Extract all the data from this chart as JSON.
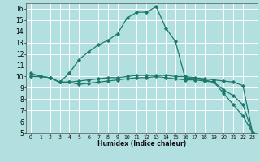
{
  "xlabel": "Humidex (Indice chaleur)",
  "bg_color": "#b2e0e0",
  "grid_color": "#ffffff",
  "line_color": "#1a7a6a",
  "xlim": [
    -0.5,
    23.5
  ],
  "ylim": [
    5,
    16.5
  ],
  "xticks": [
    0,
    1,
    2,
    3,
    4,
    5,
    6,
    7,
    8,
    9,
    10,
    11,
    12,
    13,
    14,
    15,
    16,
    17,
    18,
    19,
    20,
    21,
    22,
    23
  ],
  "yticks": [
    5,
    6,
    7,
    8,
    9,
    10,
    11,
    12,
    13,
    14,
    15,
    16
  ],
  "xticklabels": [
    "0",
    "1",
    "2",
    "3",
    "4",
    "5",
    "6",
    "7",
    "8",
    "9",
    "10",
    "11",
    "12",
    "13",
    "14",
    "15",
    "16",
    "17",
    "18",
    "19",
    "20",
    "21",
    "22",
    "23"
  ],
  "line1_x": [
    0,
    1,
    2,
    3,
    4,
    5,
    6,
    7,
    8,
    9,
    10,
    11,
    12,
    13,
    14,
    15,
    16,
    17,
    18,
    19,
    20,
    21,
    22,
    23
  ],
  "line1_y": [
    10,
    10,
    9.9,
    9.5,
    9.5,
    9.6,
    9.7,
    9.8,
    9.9,
    9.9,
    10.0,
    10.1,
    10.1,
    10.1,
    10.1,
    10.0,
    10.0,
    9.9,
    9.8,
    9.7,
    9.6,
    9.5,
    9.2,
    5.0
  ],
  "line2_x": [
    0,
    1,
    2,
    3,
    4,
    5,
    6,
    7,
    8,
    9,
    10,
    11,
    12,
    13,
    14,
    15,
    16,
    17,
    18,
    19,
    20,
    21,
    22,
    23
  ],
  "line2_y": [
    10,
    10,
    9.9,
    9.5,
    9.5,
    9.3,
    9.4,
    9.5,
    9.6,
    9.7,
    9.8,
    9.9,
    9.9,
    10.0,
    9.9,
    9.8,
    9.7,
    9.7,
    9.6,
    9.5,
    8.8,
    8.3,
    7.5,
    5.0
  ],
  "line3_x": [
    0,
    1,
    2,
    3,
    4,
    5,
    6,
    7,
    8,
    9,
    10,
    11,
    12,
    13,
    14,
    15,
    16,
    17,
    18,
    19,
    20,
    21,
    22,
    23
  ],
  "line3_y": [
    10.3,
    10.0,
    9.9,
    9.5,
    10.3,
    11.5,
    12.2,
    12.8,
    13.2,
    13.8,
    15.2,
    15.7,
    15.7,
    16.2,
    14.3,
    13.1,
    9.9,
    9.8,
    9.7,
    9.5,
    8.5,
    7.5,
    6.5,
    5.0
  ]
}
